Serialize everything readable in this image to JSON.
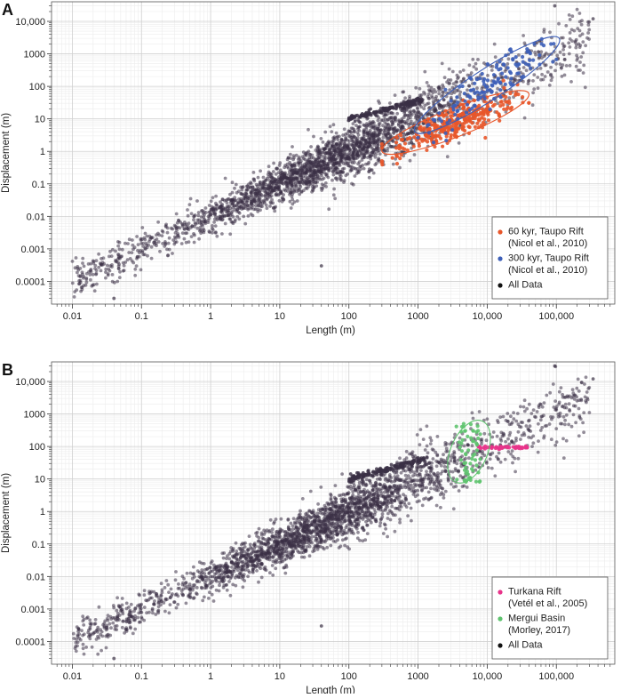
{
  "chart_data": [
    {
      "type": "scatter",
      "panel_label": "A",
      "xlabel": "Length (m)",
      "ylabel": "Displacement (m)",
      "xscale": "log",
      "yscale": "log",
      "xlim": [
        0.005,
        700000
      ],
      "ylim": [
        2e-05,
        40000
      ],
      "xticks": [
        0.01,
        0.1,
        1,
        10,
        100,
        1000,
        10000,
        100000
      ],
      "xtick_labels": [
        "0.01",
        "0.1",
        "1",
        "10",
        "100",
        "1000",
        "10,000",
        "100,000"
      ],
      "yticks": [
        0.0001,
        0.001,
        0.01,
        0.1,
        1,
        10,
        100,
        1000,
        10000
      ],
      "ytick_labels": [
        "0.0001",
        "0.001",
        "0.01",
        "0.1",
        "1",
        "10",
        "100",
        "1000",
        "10,000"
      ],
      "grid": true,
      "legend_position": "bottom-right",
      "series": [
        {
          "name": "All Data",
          "color": "#3a3045",
          "trend": {
            "x_range": [
              0.01,
              300000
            ],
            "slope": 1.0,
            "intercept": 0.01
          },
          "n_points": 2600,
          "outliers": [
            [
              40,
              0.0003
            ],
            [
              0.04,
              3e-05
            ],
            [
              340000,
              12000
            ],
            [
              95000,
              30000
            ]
          ]
        },
        {
          "name": "60 kyr, Taupo Rift",
          "source": "(Nicol et al., 2010)",
          "color": "#e8562a",
          "x_range": [
            300,
            40000
          ],
          "y_range": [
            1,
            60
          ],
          "n_points": 320,
          "ellipse": {
            "center": [
              3000,
              10
            ],
            "x_extent": [
              300,
              40000
            ],
            "y_extent": [
              1,
              60
            ]
          }
        },
        {
          "name": "300 kyr, Taupo Rift",
          "source": "(Nicol et al., 2010)",
          "color": "#3d5fb8",
          "x_range": [
            1000,
            100000
          ],
          "y_range": [
            5,
            2000
          ],
          "n_points": 140,
          "ellipse": {
            "center": [
              15000,
              150
            ],
            "x_extent": [
              900,
              110000
            ],
            "y_extent": [
              4,
              3000
            ]
          }
        }
      ]
    },
    {
      "type": "scatter",
      "panel_label": "B",
      "xlabel": "Length (m)",
      "ylabel": "Displacement (m)",
      "xscale": "log",
      "yscale": "log",
      "xlim": [
        0.005,
        700000
      ],
      "ylim": [
        2e-05,
        40000
      ],
      "xticks": [
        0.01,
        0.1,
        1,
        10,
        100,
        1000,
        10000,
        100000
      ],
      "xtick_labels": [
        "0.01",
        "0.1",
        "1",
        "10",
        "100",
        "1000",
        "10,000",
        "100,000"
      ],
      "yticks": [
        0.0001,
        0.001,
        0.01,
        0.1,
        1,
        10,
        100,
        1000,
        10000
      ],
      "ytick_labels": [
        "0.0001",
        "0.001",
        "0.01",
        "0.1",
        "1",
        "10",
        "100",
        "1000",
        "10,000"
      ],
      "grid": true,
      "legend_position": "bottom-right",
      "series": [
        {
          "name": "All Data",
          "color": "#3a3045",
          "trend": {
            "x_range": [
              0.01,
              300000
            ],
            "slope": 1.0,
            "intercept": 0.01
          },
          "n_points": 2600,
          "outliers": [
            [
              40,
              0.0003
            ],
            [
              0.04,
              3e-05
            ],
            [
              340000,
              12000
            ],
            [
              95000,
              30000
            ]
          ]
        },
        {
          "name": "Turkana Rift",
          "source": "(Vetél et al., 2005)",
          "color": "#e8338a",
          "x_range": [
            7000,
            40000
          ],
          "y_range": [
            80,
            110
          ],
          "n_points": 45
        },
        {
          "name": "Mergui Basin",
          "source": "(Morley, 2017)",
          "color": "#5ec36e",
          "x_range": [
            3500,
            8000
          ],
          "y_range": [
            8,
            500
          ],
          "n_points": 60,
          "ellipse": {
            "center": [
              5500,
              70
            ],
            "x_extent": [
              3500,
              8500
            ],
            "y_extent": [
              8,
              600
            ]
          }
        }
      ]
    }
  ]
}
